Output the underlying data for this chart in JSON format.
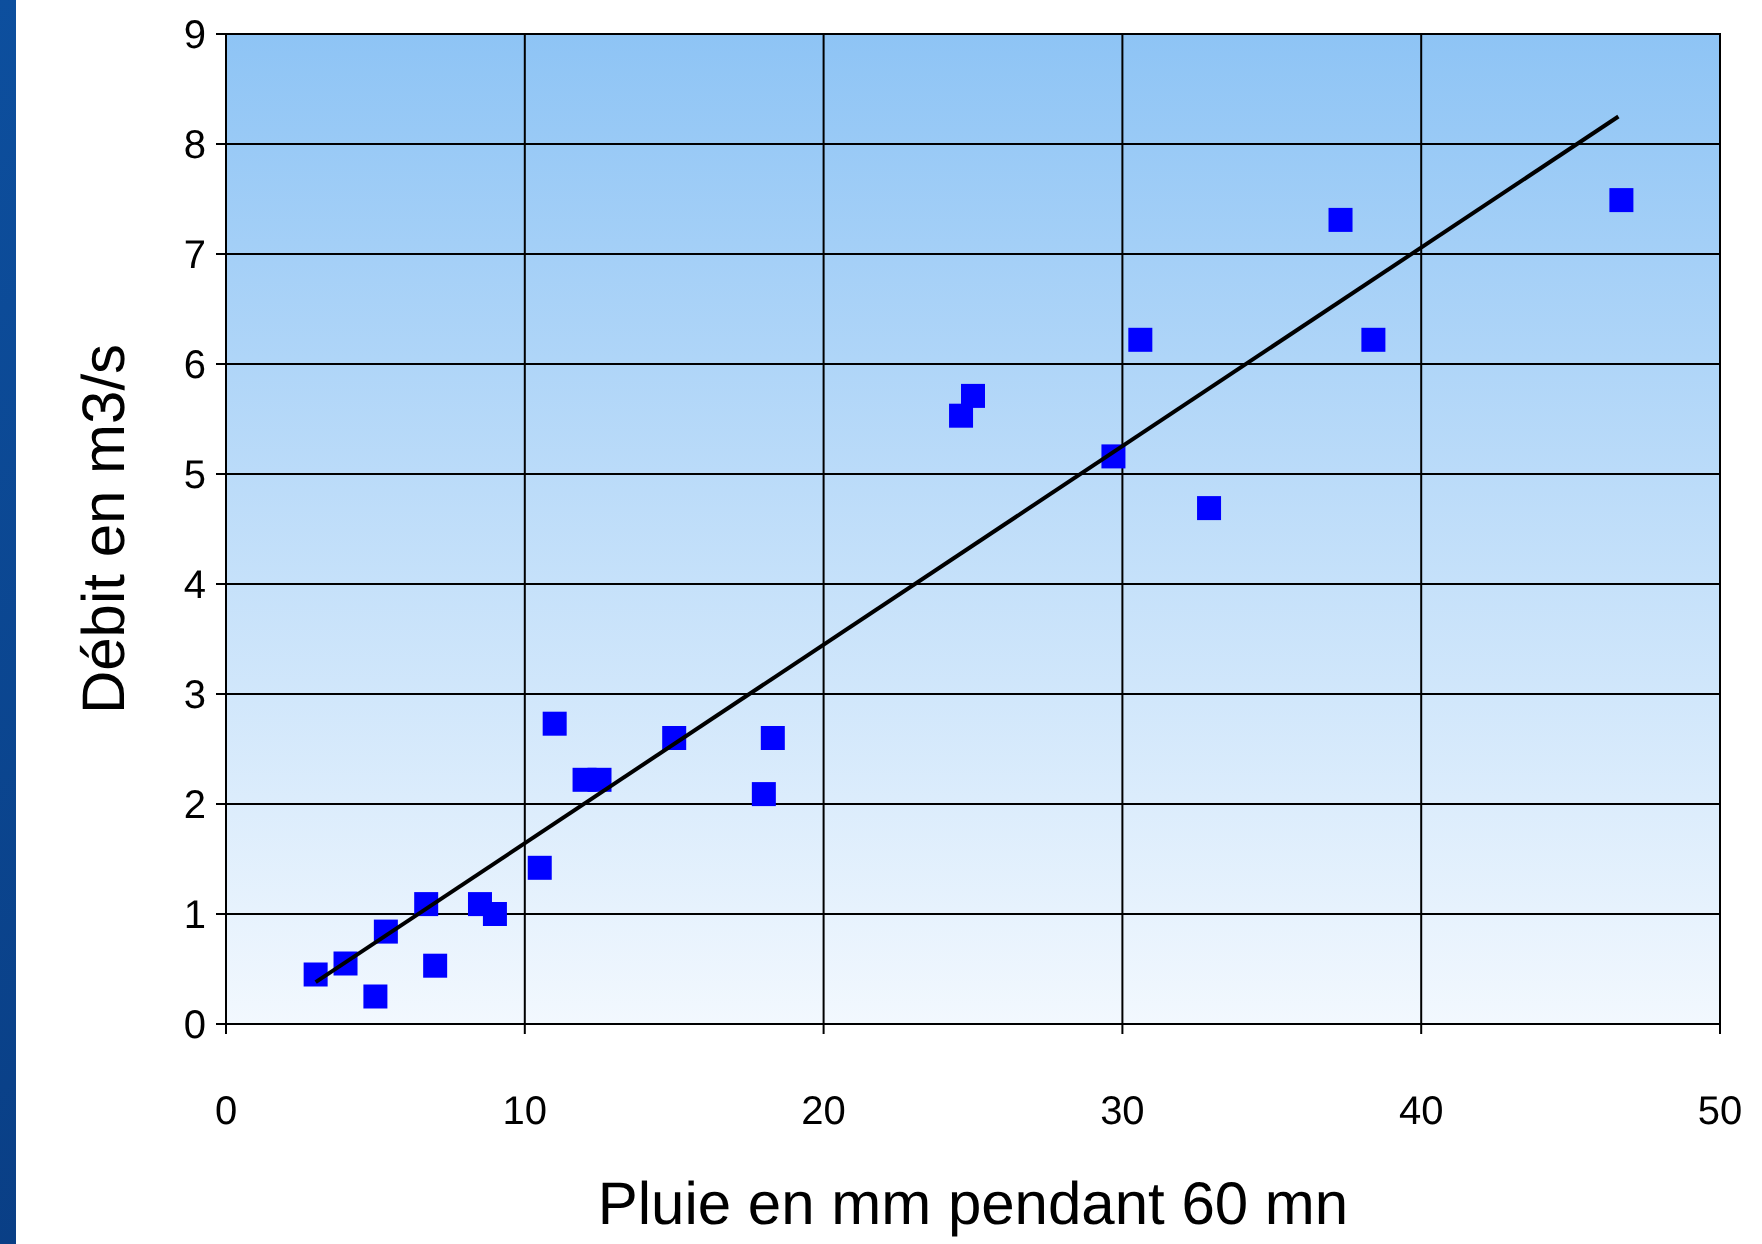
{
  "chart_data": {
    "type": "scatter",
    "xlabel": "Pluie en mm pendant 60 mn",
    "ylabel": "Débit en m3/s",
    "xlim": [
      0,
      50
    ],
    "ylim": [
      0,
      9
    ],
    "xticks": [
      0,
      10,
      20,
      30,
      40,
      50
    ],
    "yticks": [
      0,
      1,
      2,
      3,
      4,
      5,
      6,
      7,
      8,
      9
    ],
    "grid": true,
    "marker": "square",
    "series": [
      {
        "color": "#0000ff",
        "x": [
          3.0,
          4.0,
          5.0,
          5.35,
          6.7,
          7.0,
          8.5,
          9.0,
          10.5,
          11.0,
          12.0,
          12.5,
          15.0,
          18.0,
          18.3,
          24.6,
          25.0,
          29.7,
          30.6,
          32.9,
          37.3,
          38.4,
          46.7
        ],
        "values": [
          0.45,
          0.55,
          0.25,
          0.84,
          1.09,
          0.53,
          1.09,
          1.0,
          1.42,
          2.73,
          2.22,
          2.22,
          2.6,
          2.09,
          2.6,
          5.53,
          5.71,
          5.16,
          6.22,
          4.69,
          7.31,
          6.22,
          7.49
        ]
      },
      {
        "type": "line",
        "color": "#000000",
        "marker": "none",
        "x": [
          3.0,
          46.6
        ],
        "values": [
          0.38,
          8.25
        ]
      }
    ]
  }
}
